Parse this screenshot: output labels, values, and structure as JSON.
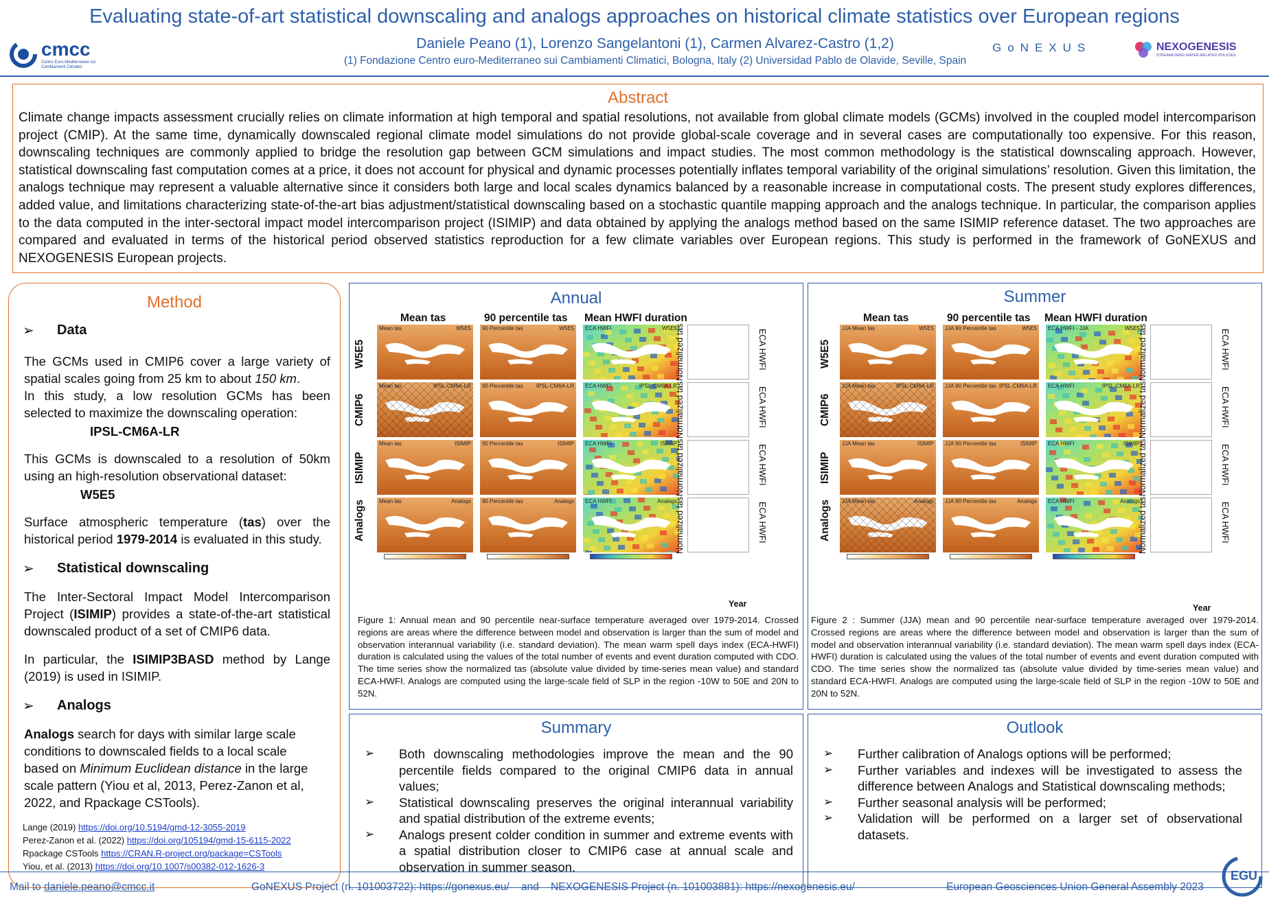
{
  "header": {
    "title": "Evaluating state-of-art statistical downscaling and analogs approaches on historical climate statistics over European regions",
    "authors": "Daniele Peano (1), Lorenzo Sangelantoni (1), Carmen Alvarez-Castro (1,2)",
    "affiliations": "(1) Fondazione Centro euro-Mediterraneo sui Cambiamenti Climatici, Bologna, Italy (2) Universidad Pablo de Olavide, Seville, Spain",
    "logo_cmcc": "cmcc",
    "logo_cmcc_sub": "Centro Euro-Mediterraneo sui Cambiamenti Climatici",
    "logo_gonexus": "GoNEXUS",
    "logo_nexogenesis": "NEXOGENESIS",
    "logo_nexogenesis_sub": "STREAMLINING WATER-RELATED POLICIES"
  },
  "abstract": {
    "title": "Abstract",
    "text": "Climate change impacts assessment crucially relies on climate information at high temporal and spatial resolutions, not available from global climate models (GCMs) involved in the coupled model intercomparison project (CMIP). At the same time, dynamically downscaled regional climate model simulations do not provide global-scale coverage and in several cases are computationally too expensive. For this reason, downscaling techniques are commonly applied to bridge the resolution gap between GCM simulations and impact studies. The most common methodology is the statistical downscaling approach. However, statistical downscaling fast computation comes at a price, it does not account for physical and dynamic processes potentially inflates temporal variability of the original simulations’ resolution. Given this limitation, the analogs technique may represent a valuable alternative since it considers both large and local scales dynamics balanced by a reasonable increase in computational costs. The present study explores differences, added value, and limitations characterizing state-of-the-art bias adjustment/statistical downscaling based on a stochastic quantile mapping approach and the analogs technique. In particular, the comparison applies to the data computed in the inter-sectoral impact model intercomparison project (ISIMIP) and data obtained by applying the analogs method based on the same ISIMIP reference dataset. The two approaches are compared and evaluated in terms of the historical period observed statistics reproduction for a few climate variables over European regions. This study is performed in the framework of GoNEXUS and NEXOGENESIS European projects."
  },
  "method": {
    "title": "Method",
    "data_head": "Data",
    "data_p1a": "The GCMs used in CMIP6 cover a large variety of spatial scales going from 25 km to about ",
    "data_p1b": "150 km",
    "data_p1c": ".",
    "data_p2": "In this study, a low resolution GCMs has been selected to maximize the downscaling operation:",
    "gcm": "IPSL-CM6A-LR",
    "data_p3": "This GCMs is downscaled to a resolution of 50km using an high-resolution observational dataset:",
    "obs": "W5E5",
    "data_p4a": "Surface atmospheric temperature (",
    "data_p4b": "tas",
    "data_p4c": ") over the historical period ",
    "data_p4d": "1979-2014",
    "data_p4e": " is evaluated in this study.",
    "sd_head": "Statistical downscaling",
    "sd_p1a": "The Inter-Sectoral Impact Model Intercomparison Project (",
    "sd_p1b": "ISIMIP",
    "sd_p1c": ") provides a state-of-the-art statistical downscaled product of a set of CMIP6 data.",
    "sd_p2a": "In particular, the ",
    "sd_p2b": "ISIMIP3BASD",
    "sd_p2c": " method by Lange (2019) is used in ISIMIP.",
    "an_head": "Analogs",
    "an_p1a": "Analogs",
    "an_p1b": " search for days with similar large scale conditions to downscaled fields to a local scale based on ",
    "an_p1c": "Minimum Euclidean distance",
    "an_p1d": " in the large scale pattern (Yiou et al, 2013, Perez-Zanon et al, 2022, and Rpackage CSTools).",
    "refs": [
      {
        "label": "Lange (2019) ",
        "link": "https://doi.org/10.5194/gmd-12-3055-2019"
      },
      {
        "label": "Perez-Zanon et al. (2022) ",
        "link": "https://doi.org/105194/gmd-15-6115-2022"
      },
      {
        "label": "Rpackage CSTools ",
        "link": "https://CRAN.R-project.org/package=CSTools"
      },
      {
        "label": "Yiou, et al. (2013) ",
        "link": "https://doi.org/10.1007/s00382-012-1626-3"
      }
    ]
  },
  "annual": {
    "title": "Annual",
    "col1": "Mean tas",
    "col2": "90 percentile tas",
    "col3": "Mean HWFI duration",
    "rows": [
      "W5E5",
      "CMIP6",
      "ISIMIP",
      "Analogs"
    ],
    "ts_ylabel": "Normalized tas",
    "ts_rlabel": "ECA HWFI",
    "xlabel": "Year",
    "map_tags": [
      [
        "Mean tas",
        "W5E5",
        "90 Percentile tas",
        "W5E5",
        "ECA HWFI",
        "W5E5"
      ],
      [
        "Mean tas",
        "IPSL-CM6A-LR",
        "90 Percentile tas",
        "IPSL-CM6A-LR",
        "ECA HWFI",
        "IPSL-CM6A-LR"
      ],
      [
        "Mean tas",
        "ISIMIP",
        "90 Percentile tas",
        "ISIMIP",
        "ECA HWFI",
        "ISIMIP"
      ],
      [
        "Mean tas",
        "Analogs",
        "90 Percentile tas",
        "Analogs",
        "ECA HWFI",
        "Analogs"
      ]
    ],
    "caption": "Figure 1: Annual mean and 90 percentile near-surface temperature averaged over 1979-2014. Crossed regions are areas where the difference between model and observation is larger than the sum of model and observation interannual variability (i.e. standard deviation). The mean warm spell days index (ECA-HWFI) duration is calculated using the values of the total number of events and event duration computed with CDO. The time series show the normalized tas (absolute value divided by time-series mean value) and standard ECA-HWFI. Analogs are computed using the large-scale field of SLP in the region -10W to 50E and 20N to 52N."
  },
  "summer": {
    "title": "Summer",
    "col1": "Mean tas",
    "col2": "90 percentile tas",
    "col3": "Mean HWFI duration",
    "rows": [
      "W5E5",
      "CMIP6",
      "ISIMIP",
      "Analogs"
    ],
    "ts_ylabel": "Normalized tas",
    "ts_rlabel": "ECA HWFI",
    "xlabel": "Year",
    "map_tags": [
      [
        "JJA Mean tas",
        "W5E5",
        "JJA 90 Percentile tas",
        "W5E5",
        "ECA HWFI - JJA",
        "W5E5"
      ],
      [
        "JJA Mean tas",
        "IPSL-CM6A-LR",
        "JJA 90 Percentile tas",
        "IPSL-CM6A-LR",
        "ECA HWFI",
        "IPSL-CM6A-LR"
      ],
      [
        "JJA Mean tas",
        "ISIMIP",
        "JJA 90 Percentile tas",
        "ISIMIP",
        "ECA HWFI",
        "ISIMIP"
      ],
      [
        "JJA Mean tas",
        "Analogs",
        "JJA 90 Percentile tas",
        "Analogs",
        "ECA HWFI",
        "Analogs"
      ]
    ],
    "caption": "Figure 2 : Summer (JJA) mean and 90 percentile near-surface temperature averaged over 1979-2014. Crossed regions are areas where the difference between model and observation is larger than the sum of model and observation interannual variability (i.e. standard deviation). The mean warm spell days index (ECA-HWFI) duration is calculated using the values of the total number of events and event duration computed with CDO. The time series show the normalized tas (absolute value divided by time-series mean value) and standard ECA-HWFI. Analogs are computed using the large-scale field of SLP in the region -10W to 50E and 20N to 52N."
  },
  "summary": {
    "title": "Summary",
    "items": [
      "Both downscaling methodologies improve the mean and the 90 percentile fields compared to the original CMIP6 data in annual values;",
      "Statistical downscaling preserves the original interannual variability and spatial distribution of the extreme events;",
      "Analogs present colder condition in summer and extreme events with a spatial distribution closer to CMIP6 case at annual scale and observation in summer season."
    ]
  },
  "outlook": {
    "title": "Outlook",
    "items": [
      "Further calibration of Analogs options will be performed;",
      "Further variables and indexes will be investigated to assess the difference between Analogs and Statistical downscaling methods;",
      "Further seasonal analysis will be performed;",
      "Validation will be performed on a larger set of observational datasets."
    ]
  },
  "footer": {
    "mail_label": "Mail to ",
    "mail": "daniele.peano@cmcc.it",
    "projects": "GoNEXUS Project (n. 101003722): https://gonexus.eu/    and    NEXOGENESIS Project (n. 101003881): https://nexogenesis.eu/",
    "egu": "European Geosciences Union General Assembly 2023",
    "egu_logo": "EGU"
  },
  "colors": {
    "blue": "#2e5fa8",
    "orange": "#e0702a"
  }
}
